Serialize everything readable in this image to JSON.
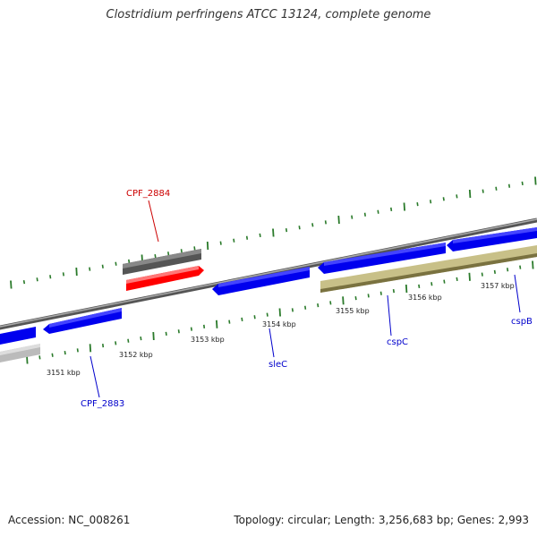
{
  "header": {
    "title": "Clostridium perfringens ATCC 13124, complete genome"
  },
  "footer": {
    "accession": "Accession: NC_008261",
    "summary": "Topology: circular; Length: 3,256,683 bp; Genes: 2,993"
  },
  "map": {
    "tick_labels": [
      "3151 kbp",
      "3152 kbp",
      "3153 kbp",
      "3154 kbp",
      "3155 kbp",
      "3156 kbp",
      "3157 kbp"
    ],
    "genes": [
      {
        "label": "CPF_2884",
        "color": "#cc0000"
      },
      {
        "label": "CPF_2883",
        "color": "#0000cc"
      },
      {
        "label": "sleC",
        "color": "#0000cc"
      },
      {
        "label": "cspC",
        "color": "#0000cc"
      },
      {
        "label": "cspB",
        "color": "#0000cc"
      }
    ],
    "feature_colors": {
      "cds_forward": "#0000ee",
      "highlight": "#ff0000",
      "pseudo": "#555555",
      "gray": "#bbbbbb",
      "olive": "#c8c088",
      "backbone": "#777777",
      "ticks": "#2a7a2a"
    }
  }
}
